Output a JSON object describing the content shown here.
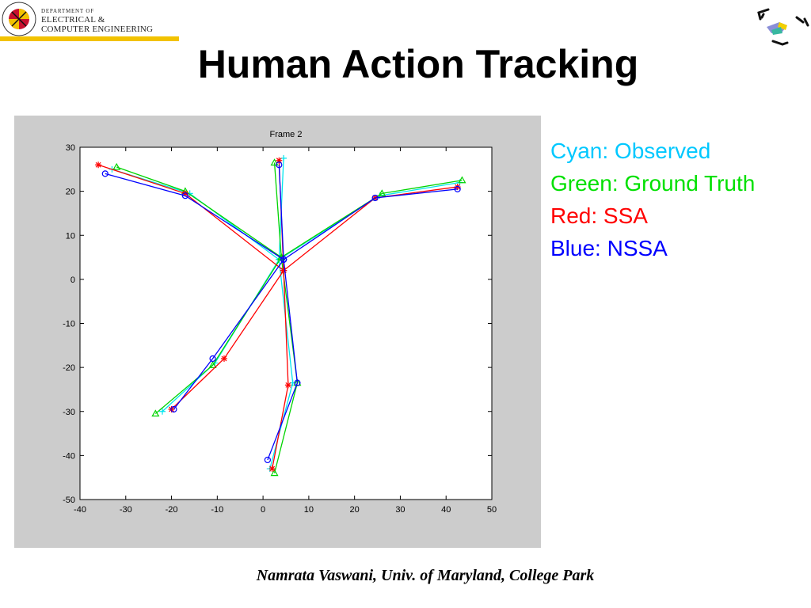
{
  "header": {
    "dept_line1": "DEPARTMENT OF",
    "dept_line2": "ELECTRICAL &",
    "dept_line3": "COMPUTER ENGINEERING",
    "seal_text": "UNIVERSITY OF MARYLAND",
    "corner_logo_icon": "bracket-logo-icon"
  },
  "slide": {
    "title": "Human Action Tracking"
  },
  "legend": {
    "items": [
      {
        "label": "Cyan: Observed",
        "color": "#00c8ff"
      },
      {
        "label": "Green: Ground Truth",
        "color": "#00e000"
      },
      {
        "label": "Red: SSA",
        "color": "#ff0000"
      },
      {
        "label": "Blue: NSSA",
        "color": "#0000ff"
      }
    ]
  },
  "footer": {
    "text": "Namrata Vaswani, Univ. of Maryland, College Park"
  },
  "chart_data": {
    "type": "line",
    "title": "Frame 2",
    "xlabel": "",
    "ylabel": "",
    "xlim": [
      -40,
      50
    ],
    "ylim": [
      -50,
      30
    ],
    "x_ticks": [
      -40,
      -30,
      -20,
      -10,
      0,
      10,
      20,
      30,
      40,
      50
    ],
    "y_ticks": [
      30,
      20,
      10,
      0,
      -10,
      -20,
      -30,
      -40,
      -50
    ],
    "grid": false,
    "series": [
      {
        "color": "#00e5ee",
        "marker": "plus",
        "limbs": [
          [
            [
              3.5,
              4.5
            ],
            [
              -16,
              19.5
            ],
            [
              -33,
              25
            ]
          ],
          [
            [
              3.5,
              4.5
            ],
            [
              25.5,
              19
            ],
            [
              43,
              22
            ]
          ],
          [
            [
              3.5,
              4.5
            ],
            [
              4.5,
              27.5
            ]
          ],
          [
            [
              3.5,
              4.5
            ],
            [
              -10.5,
              -19
            ],
            [
              -22,
              -30
            ]
          ],
          [
            [
              3.5,
              4.5
            ],
            [
              6.5,
              -23.5
            ],
            [
              1.5,
              -43
            ]
          ]
        ]
      },
      {
        "color": "#00d400",
        "marker": "triangle",
        "limbs": [
          [
            [
              4,
              5
            ],
            [
              -17,
              20
            ],
            [
              -32,
              25.5
            ]
          ],
          [
            [
              4,
              5
            ],
            [
              26,
              19.5
            ],
            [
              43.5,
              22.5
            ]
          ],
          [
            [
              4,
              5
            ],
            [
              2.5,
              26.5
            ]
          ],
          [
            [
              4,
              5
            ],
            [
              -11,
              -19.5
            ],
            [
              -23.5,
              -30.5
            ]
          ],
          [
            [
              4,
              5
            ],
            [
              7.5,
              -23.5
            ],
            [
              2.5,
              -44
            ]
          ]
        ]
      },
      {
        "color": "#ff0000",
        "marker": "star",
        "limbs": [
          [
            [
              4.5,
              2
            ],
            [
              -17,
              19.5
            ],
            [
              -36,
              26
            ]
          ],
          [
            [
              4.5,
              2
            ],
            [
              24.5,
              18.5
            ],
            [
              42.5,
              21
            ]
          ],
          [
            [
              4.5,
              2
            ],
            [
              3.5,
              27
            ]
          ],
          [
            [
              4.5,
              2
            ],
            [
              -8.5,
              -18
            ],
            [
              -20,
              -29.5
            ]
          ],
          [
            [
              4.5,
              2
            ],
            [
              5.5,
              -24
            ],
            [
              2,
              -43
            ]
          ]
        ]
      },
      {
        "color": "#0000ff",
        "marker": "circle",
        "limbs": [
          [
            [
              4.5,
              4.5
            ],
            [
              -17,
              19
            ],
            [
              -34.5,
              24
            ]
          ],
          [
            [
              4.5,
              4.5
            ],
            [
              24.5,
              18.5
            ],
            [
              42.5,
              20.5
            ]
          ],
          [
            [
              4.5,
              4.5
            ],
            [
              3.5,
              26
            ]
          ],
          [
            [
              4.5,
              4.5
            ],
            [
              -11,
              -18
            ],
            [
              -19.5,
              -29.5
            ]
          ],
          [
            [
              4.5,
              4.5
            ],
            [
              7.5,
              -23.5
            ],
            [
              1,
              -41
            ]
          ]
        ]
      }
    ]
  }
}
